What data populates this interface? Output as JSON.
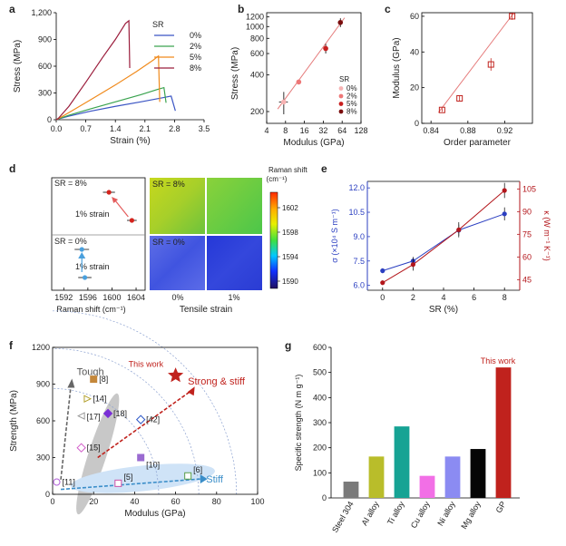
{
  "chart_data": [
    {
      "panel": "a",
      "type": "line",
      "title": "",
      "xlabel": "Strain (%)",
      "ylabel": "Stress (MPa)",
      "xlim": [
        0,
        3.5
      ],
      "ylim": [
        0,
        1200
      ],
      "xticks": [
        "0.0",
        "0.7",
        "1.4",
        "2.1",
        "2.8",
        "3.5"
      ],
      "yticks": [
        "0",
        "300",
        "600",
        "900",
        "1,200"
      ],
      "legend_title": "SR",
      "series": [
        {
          "name": "0%",
          "color": "#3b55c4",
          "x": [
            0,
            0.05,
            0.3,
            0.8,
            1.4,
            2.0,
            2.5,
            2.72,
            2.82
          ],
          "y": [
            0,
            8,
            40,
            95,
            150,
            200,
            245,
            265,
            100
          ]
        },
        {
          "name": "2%",
          "color": "#3aa34f",
          "x": [
            0,
            0.05,
            0.3,
            0.8,
            1.4,
            2.0,
            2.4,
            2.55,
            2.6
          ],
          "y": [
            0,
            10,
            50,
            120,
            200,
            280,
            340,
            360,
            190
          ]
        },
        {
          "name": "5%",
          "color": "#f08a1c",
          "x": [
            0,
            0.05,
            0.3,
            0.8,
            1.4,
            1.9,
            2.3,
            2.42,
            2.45
          ],
          "y": [
            0,
            12,
            80,
            220,
            390,
            540,
            670,
            715,
            200
          ]
        },
        {
          "name": "8%",
          "color": "#9b1d3c",
          "x": [
            0,
            0.05,
            0.3,
            0.7,
            1.1,
            1.4,
            1.64,
            1.72,
            1.74
          ],
          "y": [
            0,
            15,
            150,
            420,
            700,
            900,
            1080,
            1110,
            580
          ]
        }
      ]
    },
    {
      "panel": "b",
      "type": "scatter",
      "xlabel": "Modulus (GPa)",
      "ylabel": "Stress (MPa)",
      "xscale": "log2",
      "yscale": "log10",
      "xticks": [
        "4",
        "8",
        "16",
        "32",
        "64",
        "128"
      ],
      "yticks": [
        "200",
        "400",
        "600",
        "800",
        "1000",
        "1200"
      ],
      "legend_title": "SR",
      "legend": [
        "0%",
        "2%",
        "5%",
        "8%"
      ],
      "colors": [
        "#f7b3b3",
        "#ee7777",
        "#c81e1e",
        "#7a0d0d"
      ],
      "x": [
        7.5,
        13,
        35,
        60
      ],
      "y": [
        240,
        350,
        660,
        1080
      ],
      "xerr": [
        1.2,
        1.0,
        3,
        4
      ],
      "yerr": [
        50,
        15,
        60,
        90
      ],
      "fit": [
        [
          6,
          210
        ],
        [
          70,
          1180
        ]
      ]
    },
    {
      "panel": "c",
      "type": "scatter",
      "xlabel": "Order parameter",
      "ylabel": "Modulus (GPa)",
      "xlim": [
        0.83,
        0.95
      ],
      "ylim": [
        0,
        62
      ],
      "xticks": [
        "0.84",
        "0.88",
        "0.92"
      ],
      "yticks": [
        "0",
        "20",
        "40",
        "60"
      ],
      "x": [
        0.852,
        0.871,
        0.905,
        0.928
      ],
      "y": [
        7.5,
        14,
        33,
        60
      ],
      "yerr": [
        1,
        1.5,
        3.5,
        2
      ],
      "fit": [
        [
          0.848,
          6
        ],
        [
          0.93,
          62
        ]
      ]
    },
    {
      "panel": "d",
      "type": "scatter",
      "xlabel": "Raman shift (cm⁻¹)",
      "xticks": [
        "1592",
        "1596",
        "1600",
        "1604"
      ],
      "top": {
        "label": "SR = 8%",
        "strain_label": "1% strain",
        "points": [
          {
            "x": 1599.5,
            "err": 1.0
          },
          {
            "x": 1603.3,
            "err": 0.8
          }
        ]
      },
      "bottom": {
        "label": "SR = 0%",
        "strain_label": "1% strain",
        "points": [
          {
            "x": 1595.0,
            "err": 1.2
          },
          {
            "x": 1595.5,
            "err": 1.1
          }
        ]
      },
      "map_top_label": "SR = 8%",
      "map_bottom_label": "SR = 0%",
      "map_xlabel": "Tensile strain",
      "map_xticks": [
        "0%",
        "1%"
      ],
      "colorbar_title": "Raman shift",
      "colorbar_unit": "(cm⁻¹)",
      "colorbar_ticks": [
        "1602",
        "1598",
        "1594",
        "1590"
      ]
    },
    {
      "panel": "e",
      "type": "line",
      "xlabel": "SR (%)",
      "ylabel_left": "σ (×10⁴ S m⁻¹)",
      "ylabel_right": "κ (W m⁻¹ K⁻¹)",
      "xticks": [
        "0",
        "2",
        "4",
        "6",
        "8"
      ],
      "yticks_left": [
        "6.0",
        "7.5",
        "9.0",
        "10.5",
        "12.0"
      ],
      "yticks_right": [
        "45",
        "60",
        "75",
        "90",
        "105"
      ],
      "sigma": {
        "color": "#2b3fc1",
        "x": [
          0,
          2,
          5,
          8
        ],
        "y": [
          6.9,
          7.5,
          9.4,
          10.4
        ],
        "err": [
          0.15,
          0.25,
          0.35,
          0.4
        ]
      },
      "kappa": {
        "color": "#b3161b",
        "x": [
          0,
          2,
          5,
          8
        ],
        "y": [
          43,
          55,
          78,
          104
        ],
        "err": [
          1.5,
          4,
          5,
          5
        ]
      }
    },
    {
      "panel": "f",
      "type": "scatter",
      "xlabel": "Modulus (GPa)",
      "ylabel": "Strength (MPa)",
      "xlim": [
        0,
        100
      ],
      "ylim": [
        0,
        1200
      ],
      "xticks": [
        "0",
        "20",
        "40",
        "60",
        "80",
        "100"
      ],
      "yticks": [
        "0",
        "300",
        "600",
        "900",
        "1200"
      ],
      "this_work": {
        "x": 60,
        "y": 970,
        "label": "This work"
      },
      "labels": {
        "tough": "Tough",
        "stiff": "Stiff",
        "strong": "Strong & stiff"
      },
      "refs": [
        {
          "ref": "[8]",
          "x": 20,
          "y": 940,
          "marker": "square",
          "color": "#c4873a"
        },
        {
          "ref": "[14]",
          "x": 17,
          "y": 780,
          "marker": "tri-right",
          "color": "#b3a12f"
        },
        {
          "ref": "[17]",
          "x": 14,
          "y": 640,
          "marker": "tri-left",
          "color": "#c6c6c6"
        },
        {
          "ref": "[18]",
          "x": 27,
          "y": 660,
          "marker": "diamond",
          "color": "#7a2fd6"
        },
        {
          "ref": "[15]",
          "x": 14,
          "y": 380,
          "marker": "diamond-open",
          "color": "#d25ac9"
        },
        {
          "ref": "[42]",
          "x": 43,
          "y": 610,
          "marker": "diamond-plus",
          "color": "#2c57c7"
        },
        {
          "ref": "[10]",
          "x": 43,
          "y": 300,
          "marker": "square",
          "color": "#9a6bd1"
        },
        {
          "ref": "[5]",
          "x": 32,
          "y": 90,
          "marker": "square-x",
          "color": "#ce4fa5"
        },
        {
          "ref": "[6]",
          "x": 66,
          "y": 150,
          "marker": "square-plus",
          "color": "#5a9e4a"
        },
        {
          "ref": "[11]",
          "x": 2,
          "y": 100,
          "marker": "circle-left",
          "color": "#b160d9"
        }
      ]
    },
    {
      "panel": "g",
      "type": "bar",
      "xlabel": "",
      "ylabel": "Specific strength (N m g⁻¹)",
      "ylim": [
        0,
        600
      ],
      "yticks": [
        "0",
        "100",
        "200",
        "300",
        "400",
        "500",
        "600"
      ],
      "categories": [
        "Steel 304",
        "Al alloy",
        "Ti alloy",
        "Cu alloy",
        "Ni alloy",
        "Mg alloy",
        "GP"
      ],
      "values": [
        65,
        165,
        285,
        88,
        165,
        195,
        520
      ],
      "colors": [
        "#7a7a7a",
        "#b9bd2a",
        "#16a394",
        "#f26fe6",
        "#8b8bf2",
        "#050505",
        "#c0221d"
      ],
      "annotation": "This work"
    }
  ],
  "panel_letters": [
    "a",
    "b",
    "c",
    "d",
    "e",
    "f",
    "g"
  ]
}
